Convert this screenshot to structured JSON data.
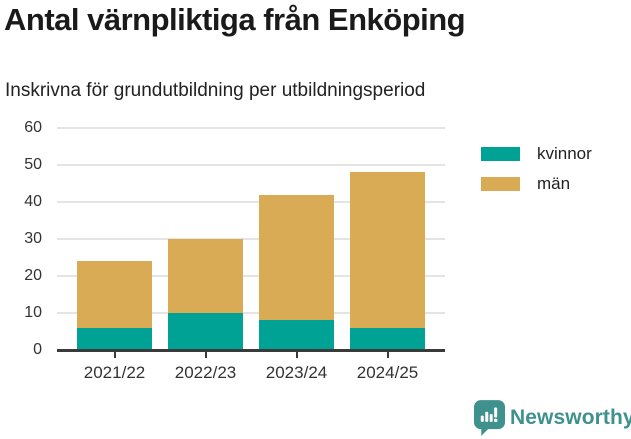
{
  "header": {
    "title": "Antal värnpliktiga från Enköping",
    "subtitle": "Inskrivna för grundutbildning per utbildningsperiod"
  },
  "chart_data": {
    "type": "bar",
    "stacked": true,
    "title": "Antal värnpliktiga från Enköping",
    "subtitle": "Inskrivna för grundutbildning per utbildningsperiod",
    "categories": [
      "2021/22",
      "2022/23",
      "2023/24",
      "2024/25"
    ],
    "series": [
      {
        "name": "kvinnor",
        "color": "#00a296",
        "values": [
          6,
          10,
          8,
          6
        ]
      },
      {
        "name": "män",
        "color": "#d9ab55",
        "values": [
          18,
          20,
          34,
          42
        ]
      }
    ],
    "stack_totals": [
      24,
      30,
      42,
      48
    ],
    "xlabel": "",
    "ylabel": "",
    "ylim": [
      0,
      60
    ],
    "yticks": [
      0,
      10,
      20,
      30,
      40,
      50,
      60
    ],
    "grid": "horizontal",
    "legend_position": "right"
  },
  "legend": {
    "items": [
      {
        "label": "kvinnor",
        "color": "#00a296"
      },
      {
        "label": "män",
        "color": "#d9ab55"
      }
    ]
  },
  "footer": {
    "brand": "Newsworthy",
    "brand_color": "#3f918e"
  }
}
